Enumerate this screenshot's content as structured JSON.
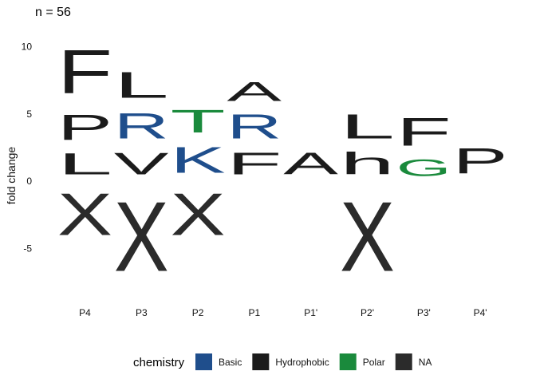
{
  "chart_data": {
    "type": "sequence-logo",
    "title": "n = 56",
    "xlabel": "",
    "ylabel": "fold change",
    "ylim": [
      -8.6,
      11.2
    ],
    "yticks": [
      -5,
      0,
      5,
      10
    ],
    "positions": [
      "P4",
      "P3",
      "P2",
      "P1",
      "P1'",
      "P2'",
      "P3'",
      "P4'"
    ],
    "letters": [
      {
        "position": "P4",
        "letter": "L",
        "y0": 0,
        "y1": 2.5,
        "chemistry": "Hydrophobic"
      },
      {
        "position": "P4",
        "letter": "P",
        "y0": 2.5,
        "y1": 5.5,
        "chemistry": "Hydrophobic"
      },
      {
        "position": "P4",
        "letter": "F",
        "y0": 5.5,
        "y1": 10.7,
        "chemistry": "Hydrophobic"
      },
      {
        "position": "P4",
        "letter": "X",
        "y0": -5,
        "y1": 0,
        "chemistry": "NA"
      },
      {
        "position": "P3",
        "letter": "V",
        "y0": 0,
        "y1": 2.6,
        "chemistry": "Hydrophobic"
      },
      {
        "position": "P3",
        "letter": "R",
        "y0": 2.6,
        "y1": 5.6,
        "chemistry": "Basic"
      },
      {
        "position": "P3",
        "letter": "L",
        "y0": 5.6,
        "y1": 8.7,
        "chemistry": "Hydrophobic"
      },
      {
        "position": "P3",
        "letter": "X",
        "y0": -8.3,
        "y1": 0,
        "chemistry": "NA"
      },
      {
        "position": "P2",
        "letter": "K",
        "y0": 0,
        "y1": 3.1,
        "chemistry": "Basic"
      },
      {
        "position": "P2",
        "letter": "T",
        "y0": 3.1,
        "y1": 5.8,
        "chemistry": "Polar"
      },
      {
        "position": "P2",
        "letter": "X",
        "y0": -5,
        "y1": 0,
        "chemistry": "NA"
      },
      {
        "position": "P1",
        "letter": "F",
        "y0": 0,
        "y1": 2.6,
        "chemistry": "Hydrophobic"
      },
      {
        "position": "P1",
        "letter": "R",
        "y0": 2.6,
        "y1": 5.5,
        "chemistry": "Basic"
      },
      {
        "position": "P1",
        "letter": "A",
        "y0": 5.5,
        "y1": 7.8,
        "chemistry": "Hydrophobic"
      },
      {
        "position": "P1'",
        "letter": "A",
        "y0": 0,
        "y1": 2.6,
        "chemistry": "Hydrophobic"
      },
      {
        "position": "P2'",
        "letter": "h",
        "y0": 0,
        "y1": 2.6,
        "chemistry": "Hydrophobic"
      },
      {
        "position": "P2'",
        "letter": "L",
        "y0": 2.6,
        "y1": 5.5,
        "chemistry": "Hydrophobic"
      },
      {
        "position": "P2'",
        "letter": "X",
        "y0": -8.3,
        "y1": 0,
        "chemistry": "NA"
      },
      {
        "position": "P3'",
        "letter": "G",
        "y0": 0,
        "y1": 2.0,
        "chemistry": "Polar"
      },
      {
        "position": "P3'",
        "letter": "F",
        "y0": 2.0,
        "y1": 5.3,
        "chemistry": "Hydrophobic"
      },
      {
        "position": "P4'",
        "letter": "P",
        "y0": 0,
        "y1": 3.0,
        "chemistry": "Hydrophobic"
      }
    ],
    "legend": {
      "title": "chemistry",
      "placement": "bottom",
      "entries": [
        {
          "label": "Basic",
          "color": "#1f4e8c"
        },
        {
          "label": "Hydrophobic",
          "color": "#1b1b1b"
        },
        {
          "label": "Polar",
          "color": "#1a8a3c"
        },
        {
          "label": "NA",
          "color": "#2b2b2b"
        }
      ]
    },
    "colors": {
      "Basic": "#1f4e8c",
      "Hydrophobic": "#1b1b1b",
      "Polar": "#1a8a3c",
      "NA": "#2b2b2b"
    },
    "grid": false
  }
}
